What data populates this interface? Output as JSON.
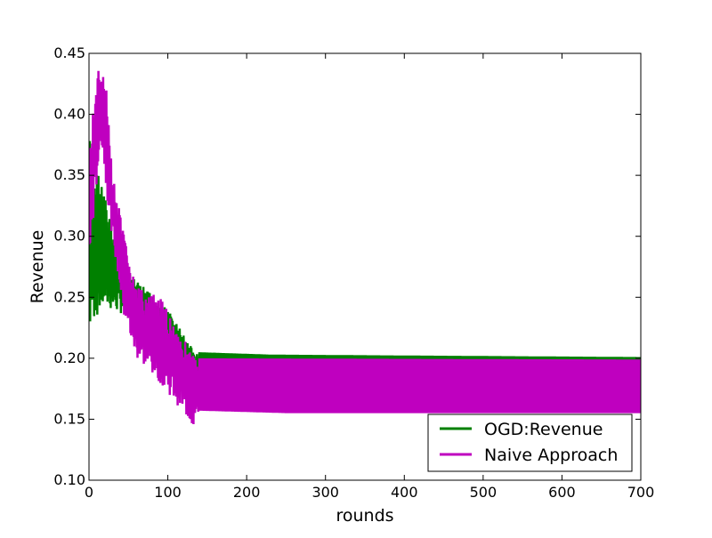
{
  "chart_data": {
    "type": "line",
    "xlabel": "rounds",
    "ylabel": "Revenue",
    "xlim": [
      0,
      700
    ],
    "ylim": [
      0.1,
      0.45
    ],
    "xticks": [
      0,
      100,
      200,
      300,
      400,
      500,
      600,
      700
    ],
    "yticks": [
      0.1,
      0.15,
      0.2,
      0.25,
      0.3,
      0.35,
      0.4,
      0.45
    ],
    "xtick_labels": [
      "0",
      "100",
      "200",
      "300",
      "400",
      "500",
      "600",
      "700"
    ],
    "ytick_labels": [
      "0.10",
      "0.15",
      "0.20",
      "0.25",
      "0.30",
      "0.35",
      "0.40",
      "0.45"
    ],
    "grid": false,
    "legend_position": "lower-right",
    "series": [
      {
        "name": "OGD:Revenue",
        "color": "#008000",
        "description": "rapidly oscillating; early spikes, then steady band",
        "keypoints_upper": [
          [
            0,
            0.39
          ],
          [
            5,
            0.365
          ],
          [
            15,
            0.35
          ],
          [
            25,
            0.32
          ],
          [
            50,
            0.27
          ],
          [
            100,
            0.24
          ],
          [
            135,
            0.205
          ],
          [
            230,
            0.203
          ],
          [
            700,
            0.201
          ]
        ],
        "keypoints_lower": [
          [
            0,
            0.21
          ],
          [
            5,
            0.23
          ],
          [
            20,
            0.24
          ],
          [
            50,
            0.235
          ],
          [
            100,
            0.21
          ],
          [
            135,
            0.17
          ],
          [
            230,
            0.165
          ],
          [
            700,
            0.163
          ]
        ]
      },
      {
        "name": "Naive Approach",
        "color": "#BF00BF",
        "description": "rapidly oscillating; spike to 0.437 near round 15, then steady band",
        "keypoints_upper": [
          [
            0,
            0.37
          ],
          [
            10,
            0.437
          ],
          [
            20,
            0.437
          ],
          [
            30,
            0.35
          ],
          [
            45,
            0.3
          ],
          [
            60,
            0.258
          ],
          [
            90,
            0.25
          ],
          [
            110,
            0.228
          ],
          [
            135,
            0.2
          ],
          [
            700,
            0.199
          ]
        ],
        "keypoints_lower": [
          [
            0,
            0.27
          ],
          [
            15,
            0.38
          ],
          [
            25,
            0.32
          ],
          [
            45,
            0.23
          ],
          [
            60,
            0.2
          ],
          [
            90,
            0.18
          ],
          [
            120,
            0.155
          ],
          [
            133,
            0.142
          ],
          [
            140,
            0.157
          ],
          [
            250,
            0.155
          ],
          [
            700,
            0.155
          ]
        ]
      }
    ]
  },
  "legend": [
    {
      "label": "OGD:Revenue",
      "color": "#008000"
    },
    {
      "label": "Naive Approach",
      "color": "#BF00BF"
    }
  ]
}
